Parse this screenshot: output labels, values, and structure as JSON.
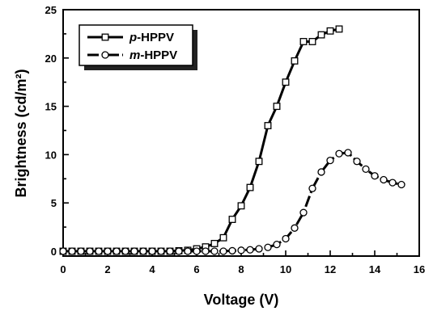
{
  "chart_data": {
    "type": "line",
    "xlabel": "Voltage (V)",
    "ylabel": "Brightness (cd/m²)",
    "xlim": [
      0,
      16
    ],
    "ylim": [
      -0.5,
      25
    ],
    "xticks": [
      0,
      2,
      4,
      6,
      8,
      10,
      12,
      14,
      16
    ],
    "yticks": [
      0,
      5,
      10,
      15,
      20,
      25
    ],
    "legend_position": "top-left",
    "series": [
      {
        "name": "p-HPPV",
        "name_italic": "p",
        "name_rest": "-HPPV",
        "marker": "square",
        "x": [
          0,
          0.4,
          0.8,
          1.2,
          1.6,
          2.0,
          2.4,
          2.8,
          3.2,
          3.6,
          4.0,
          4.4,
          4.8,
          5.2,
          5.6,
          6.0,
          6.4,
          6.8,
          7.2,
          7.6,
          8.0,
          8.4,
          8.8,
          9.2,
          9.6,
          10.0,
          10.4,
          10.8,
          11.2,
          11.6,
          12.0,
          12.4
        ],
        "y": [
          0,
          0,
          0,
          0,
          0,
          0,
          0,
          0,
          0,
          0,
          0,
          0,
          0,
          0.05,
          0.1,
          0.25,
          0.45,
          0.8,
          1.4,
          3.3,
          4.7,
          6.6,
          9.3,
          13.0,
          15.0,
          17.5,
          19.7,
          21.7,
          21.7,
          22.4,
          22.8,
          23.0
        ]
      },
      {
        "name": "m-HPPV",
        "name_italic": "m",
        "name_rest": "-HPPV",
        "marker": "circle",
        "x": [
          0,
          0.4,
          0.8,
          1.2,
          1.6,
          2.0,
          2.4,
          2.8,
          3.2,
          3.6,
          4.0,
          4.4,
          4.8,
          5.2,
          5.6,
          6.0,
          6.4,
          6.8,
          7.2,
          7.6,
          8.0,
          8.4,
          8.8,
          9.2,
          9.6,
          10.0,
          10.4,
          10.8,
          11.2,
          11.6,
          12.0,
          12.4,
          12.8,
          13.2,
          13.6,
          14.0,
          14.4,
          14.8,
          15.2
        ],
        "y": [
          0,
          0,
          0,
          0,
          0,
          0,
          0,
          0,
          0,
          0,
          0,
          0,
          0,
          0,
          0,
          0,
          0,
          0,
          0,
          0.05,
          0.1,
          0.15,
          0.25,
          0.4,
          0.7,
          1.3,
          2.4,
          4.0,
          6.5,
          8.2,
          9.4,
          10.1,
          10.2,
          9.3,
          8.5,
          7.8,
          7.4,
          7.1,
          6.9
        ]
      }
    ]
  }
}
